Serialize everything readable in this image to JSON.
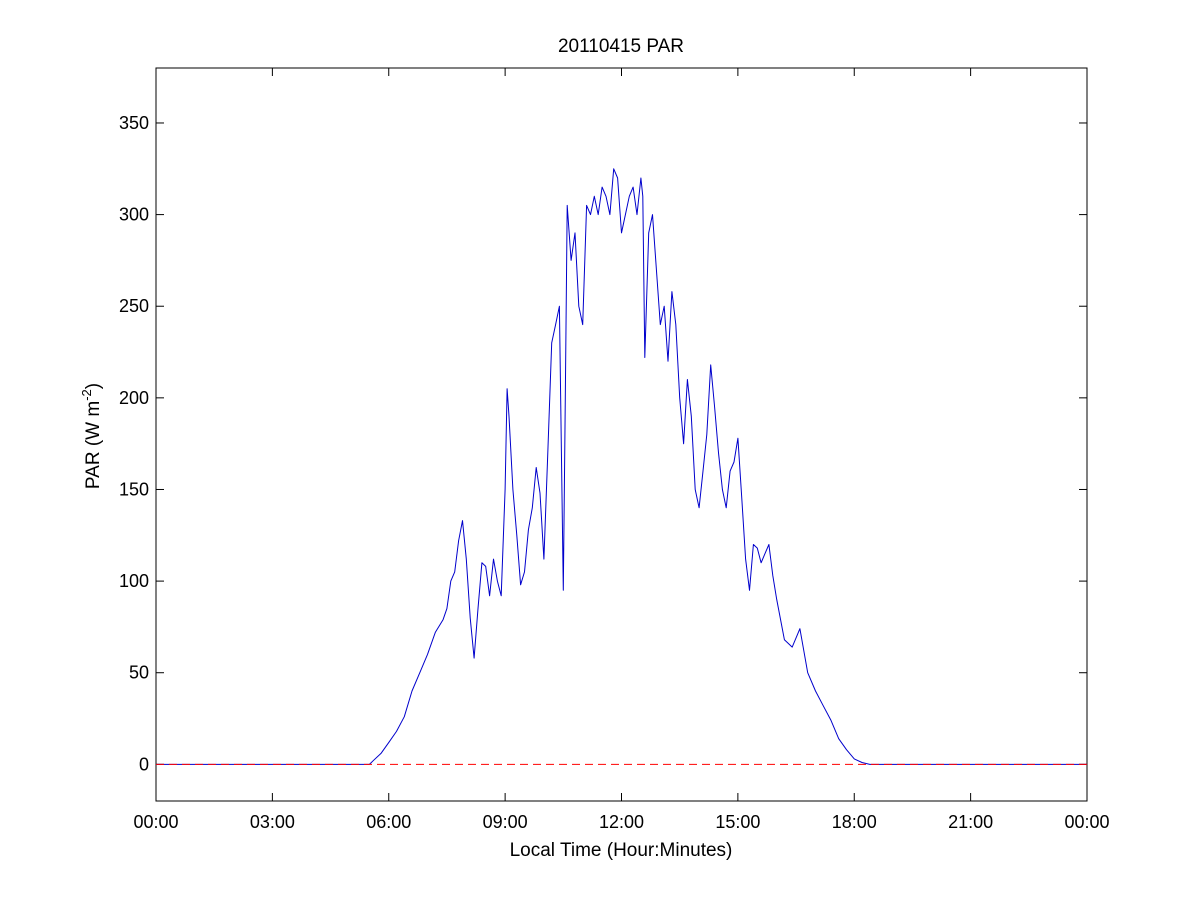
{
  "chart_data": {
    "type": "line",
    "title": "20110415 PAR",
    "xlabel": "Local Time (Hour:Minutes)",
    "ylabel": {
      "text": "PAR (W m",
      "exponent": "-2",
      "suffix": ")"
    },
    "xlim": [
      0,
      24
    ],
    "ylim": [
      -20,
      380
    ],
    "x_ticks": [
      0,
      3,
      6,
      9,
      12,
      15,
      18,
      21,
      24
    ],
    "x_tick_labels": [
      "00:00",
      "03:00",
      "06:00",
      "09:00",
      "12:00",
      "15:00",
      "18:00",
      "21:00",
      "00:00"
    ],
    "y_ticks": [
      0,
      50,
      100,
      150,
      200,
      250,
      300,
      350
    ],
    "y_tick_labels": [
      "0",
      "50",
      "100",
      "150",
      "200",
      "250",
      "300",
      "350"
    ],
    "grid": false,
    "x_unit": "hour",
    "series": [
      {
        "color": "#0000cc",
        "line_style": "solid",
        "x": [
          0,
          5.5,
          5.6,
          5.8,
          6.0,
          6.2,
          6.4,
          6.6,
          6.8,
          7.0,
          7.2,
          7.4,
          7.5,
          7.6,
          7.7,
          7.8,
          7.9,
          8.0,
          8.1,
          8.2,
          8.3,
          8.4,
          8.5,
          8.6,
          8.7,
          8.8,
          8.9,
          9.0,
          9.05,
          9.1,
          9.2,
          9.3,
          9.4,
          9.5,
          9.6,
          9.7,
          9.8,
          9.9,
          10.0,
          10.1,
          10.2,
          10.3,
          10.4,
          10.5,
          10.55,
          10.6,
          10.7,
          10.8,
          10.9,
          11.0,
          11.1,
          11.2,
          11.3,
          11.4,
          11.5,
          11.6,
          11.7,
          11.8,
          11.9,
          12.0,
          12.1,
          12.2,
          12.3,
          12.4,
          12.5,
          12.55,
          12.6,
          12.7,
          12.8,
          12.9,
          13.0,
          13.1,
          13.2,
          13.3,
          13.4,
          13.5,
          13.6,
          13.7,
          13.8,
          13.9,
          14.0,
          14.1,
          14.2,
          14.3,
          14.4,
          14.5,
          14.6,
          14.7,
          14.8,
          14.9,
          15.0,
          15.1,
          15.2,
          15.3,
          15.4,
          15.5,
          15.6,
          15.7,
          15.8,
          15.9,
          16.0,
          16.2,
          16.4,
          16.6,
          16.8,
          17.0,
          17.2,
          17.4,
          17.6,
          17.8,
          18.0,
          18.2,
          18.4,
          18.6,
          24
        ],
        "y": [
          0,
          0,
          2,
          6,
          12,
          18,
          26,
          40,
          50,
          60,
          72,
          79,
          85,
          100,
          105,
          122,
          133,
          112,
          80,
          58,
          85,
          110,
          108,
          92,
          112,
          100,
          92,
          150,
          205,
          190,
          150,
          125,
          98,
          105,
          128,
          140,
          162,
          148,
          112,
          170,
          230,
          240,
          250,
          95,
          200,
          305,
          275,
          290,
          250,
          240,
          305,
          300,
          310,
          300,
          315,
          310,
          300,
          325,
          320,
          290,
          300,
          310,
          315,
          300,
          320,
          310,
          222,
          290,
          300,
          270,
          240,
          250,
          220,
          258,
          240,
          200,
          175,
          210,
          190,
          150,
          140,
          160,
          180,
          218,
          195,
          170,
          150,
          140,
          160,
          165,
          178,
          145,
          112,
          95,
          120,
          118,
          110,
          115,
          120,
          103,
          90,
          68,
          64,
          74,
          50,
          40,
          32,
          24,
          14,
          8,
          3,
          1,
          0,
          0,
          0
        ]
      },
      {
        "color": "#ff0000",
        "line_style": "dashed",
        "x": [
          0,
          24
        ],
        "y": [
          0,
          0
        ]
      }
    ]
  }
}
